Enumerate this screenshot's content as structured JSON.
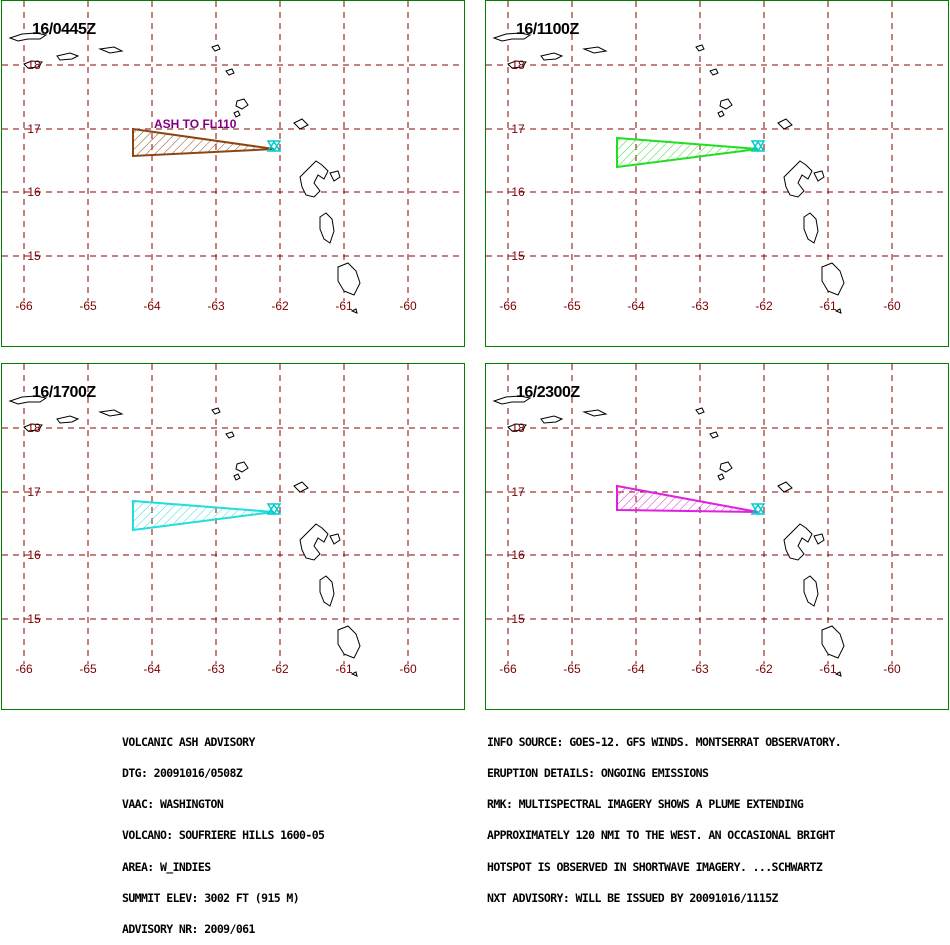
{
  "panels": [
    {
      "time": "16/0445Z",
      "color": "#8B4513",
      "label": "ASH TO FL110",
      "label_color": "#800080"
    },
    {
      "time": "16/1100Z",
      "color": "#22dd22",
      "label": "",
      "label_color": ""
    },
    {
      "time": "16/1700Z",
      "color": "#22dddd",
      "label": "",
      "label_color": ""
    },
    {
      "time": "16/2300Z",
      "color": "#dd22dd",
      "label": "",
      "label_color": ""
    }
  ],
  "axes": {
    "lon_ticks": [
      "-66",
      "-65",
      "-64",
      "-63",
      "-62",
      "-61",
      "-60"
    ],
    "lat_ticks": [
      "18",
      "17",
      "16",
      "15"
    ],
    "grid_color": "#8b0000",
    "grid_style": "dashed"
  },
  "volcano_marker_color": "#00cccc",
  "advisory_left": [
    "VOLCANIC ASH ADVISORY",
    "DTG: 20091016/0508Z",
    "VAAC: WASHINGTON",
    "VOLCANO: SOUFRIERE HILLS 1600-05",
    "AREA: W_INDIES",
    "SUMMIT ELEV: 3002 FT (915 M)",
    "ADVISORY NR: 2009/061"
  ],
  "advisory_right": [
    "INFO SOURCE: GOES-12. GFS WINDS. MONTSERRAT OBSERVATORY.",
    "ERUPTION DETAILS: ONGOING EMISSIONS",
    "RMK: MULTISPECTRAL IMAGERY SHOWS A PLUME EXTENDING",
    "APPROXIMATELY 120 NMI TO THE WEST. AN OCCASIONAL BRIGHT",
    "HOTSPOT IS OBSERVED IN SHORTWAVE IMAGERY. ...SCHWARTZ",
    "NXT ADVISORY: WILL BE ISSUED BY 20091016/1115Z"
  ]
}
